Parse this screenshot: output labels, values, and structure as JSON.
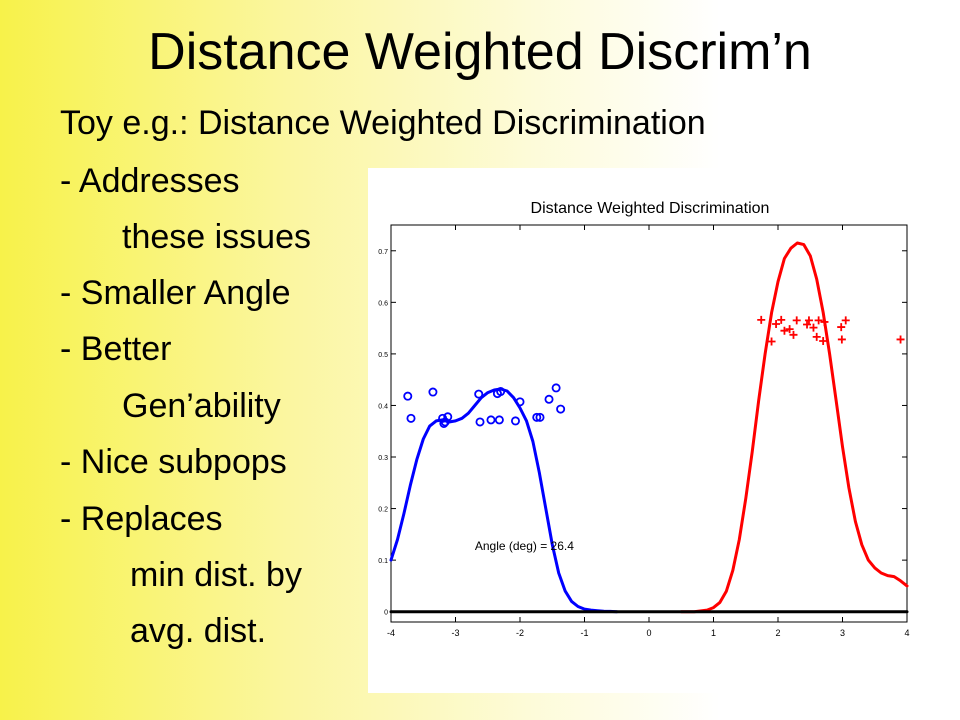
{
  "slide": {
    "title": "Distance Weighted Discrim’n",
    "bullets": [
      "Toy e.g.:  Distance Weighted Discrimination",
      "- Addresses",
      "these issues",
      "- Smaller Angle",
      "- Better",
      "Gen’ability",
      "- Nice subpops",
      "- Replaces",
      "min dist. by",
      "avg. dist."
    ]
  },
  "chart_data": {
    "type": "scatter",
    "title": "Distance Weighted Discrimination",
    "xlabel": "",
    "ylabel": "",
    "xlim": [
      -4,
      4
    ],
    "ylim": [
      -0.02,
      0.75
    ],
    "x_ticks": [
      -4,
      -3,
      -2,
      -1,
      0,
      1,
      2,
      3,
      4
    ],
    "y_ticks": [
      0,
      0.1,
      0.2,
      0.3,
      0.4,
      0.5,
      0.6,
      0.7
    ],
    "grid": false,
    "annotation": "Angle (deg) = 26.4",
    "annotation_at": {
      "x": -2.7,
      "y": 0.12
    },
    "series": [
      {
        "kind": "scatter",
        "marker": "circle",
        "color": "#0000ff",
        "points": [
          {
            "x": -3.74,
            "y": 0.418
          },
          {
            "x": -3.69,
            "y": 0.375
          },
          {
            "x": -3.35,
            "y": 0.426
          },
          {
            "x": -3.2,
            "y": 0.375
          },
          {
            "x": -3.18,
            "y": 0.365
          },
          {
            "x": -3.16,
            "y": 0.368
          },
          {
            "x": -3.12,
            "y": 0.378
          },
          {
            "x": -2.64,
            "y": 0.422
          },
          {
            "x": -2.62,
            "y": 0.368
          },
          {
            "x": -2.45,
            "y": 0.372
          },
          {
            "x": -2.35,
            "y": 0.423
          },
          {
            "x": -2.32,
            "y": 0.372
          },
          {
            "x": -2.3,
            "y": 0.427
          },
          {
            "x": -2.07,
            "y": 0.37
          },
          {
            "x": -2.0,
            "y": 0.407
          },
          {
            "x": -1.74,
            "y": 0.377
          },
          {
            "x": -1.69,
            "y": 0.377
          },
          {
            "x": -1.55,
            "y": 0.412
          },
          {
            "x": -1.44,
            "y": 0.434
          },
          {
            "x": -1.37,
            "y": 0.393
          }
        ]
      },
      {
        "kind": "scatter",
        "marker": "plus",
        "color": "#ff0000",
        "points": [
          {
            "x": 1.74,
            "y": 0.566
          },
          {
            "x": 1.9,
            "y": 0.524
          },
          {
            "x": 1.97,
            "y": 0.558
          },
          {
            "x": 2.05,
            "y": 0.566
          },
          {
            "x": 2.1,
            "y": 0.545
          },
          {
            "x": 2.18,
            "y": 0.548
          },
          {
            "x": 2.24,
            "y": 0.537
          },
          {
            "x": 2.29,
            "y": 0.565
          },
          {
            "x": 2.45,
            "y": 0.557
          },
          {
            "x": 2.48,
            "y": 0.565
          },
          {
            "x": 2.55,
            "y": 0.551
          },
          {
            "x": 2.6,
            "y": 0.533
          },
          {
            "x": 2.63,
            "y": 0.565
          },
          {
            "x": 2.7,
            "y": 0.525
          },
          {
            "x": 2.72,
            "y": 0.562
          },
          {
            "x": 2.98,
            "y": 0.552
          },
          {
            "x": 3.05,
            "y": 0.565
          },
          {
            "x": 2.99,
            "y": 0.528
          },
          {
            "x": 3.9,
            "y": 0.528
          }
        ]
      },
      {
        "kind": "line",
        "color": "#0000ff",
        "x": [
          -4.0,
          -3.9,
          -3.8,
          -3.7,
          -3.6,
          -3.5,
          -3.4,
          -3.3,
          -3.2,
          -3.1,
          -3.0,
          -2.9,
          -2.8,
          -2.7,
          -2.6,
          -2.5,
          -2.4,
          -2.3,
          -2.2,
          -2.1,
          -2.0,
          -1.9,
          -1.8,
          -1.7,
          -1.6,
          -1.5,
          -1.4,
          -1.3,
          -1.2,
          -1.1,
          -1.0,
          -0.9,
          -0.8,
          -0.7,
          -0.6,
          -0.5
        ],
        "y": [
          0.1,
          0.14,
          0.19,
          0.245,
          0.295,
          0.335,
          0.36,
          0.37,
          0.372,
          0.368,
          0.37,
          0.375,
          0.385,
          0.4,
          0.415,
          0.425,
          0.43,
          0.432,
          0.428,
          0.415,
          0.395,
          0.37,
          0.33,
          0.27,
          0.2,
          0.13,
          0.075,
          0.04,
          0.02,
          0.01,
          0.005,
          0.003,
          0.002,
          0.001,
          0.0005,
          0.0
        ]
      },
      {
        "kind": "line",
        "color": "#ff0000",
        "x": [
          0.5,
          0.7,
          0.9,
          1.0,
          1.1,
          1.2,
          1.3,
          1.4,
          1.5,
          1.6,
          1.7,
          1.8,
          1.9,
          2.0,
          2.1,
          2.2,
          2.3,
          2.4,
          2.5,
          2.6,
          2.7,
          2.8,
          2.9,
          3.0,
          3.1,
          3.2,
          3.3,
          3.4,
          3.5,
          3.6,
          3.7,
          3.8,
          3.9,
          4.0
        ],
        "y": [
          0.0,
          0.0,
          0.003,
          0.008,
          0.018,
          0.04,
          0.08,
          0.14,
          0.22,
          0.31,
          0.41,
          0.5,
          0.58,
          0.64,
          0.685,
          0.705,
          0.715,
          0.712,
          0.69,
          0.645,
          0.58,
          0.5,
          0.41,
          0.32,
          0.24,
          0.175,
          0.13,
          0.1,
          0.085,
          0.075,
          0.07,
          0.068,
          0.06,
          0.05
        ]
      },
      {
        "kind": "line",
        "color": "#000000",
        "x": [
          -4,
          4
        ],
        "y": [
          0,
          0
        ]
      }
    ]
  }
}
